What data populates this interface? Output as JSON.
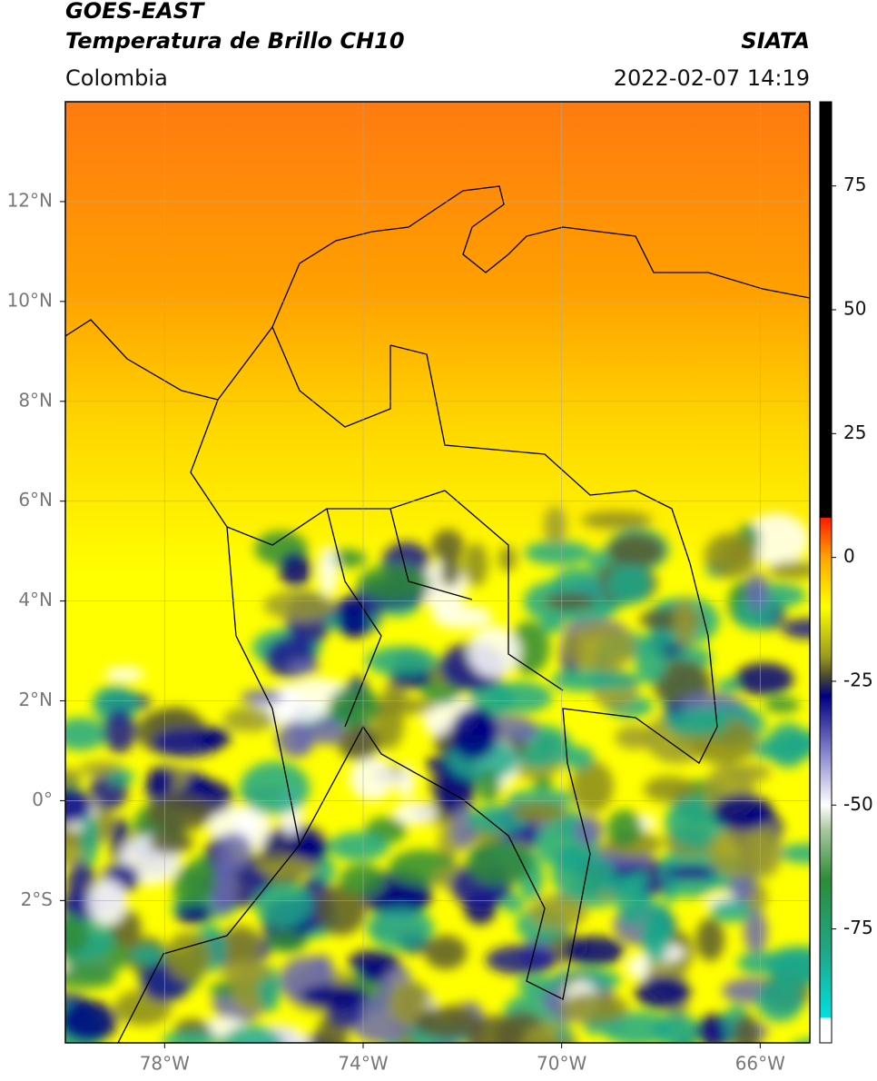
{
  "header": {
    "title": "GOES-EAST",
    "subtitle": "Temperatura de Brillo CH10",
    "source": "SIATA",
    "region": "Colombia",
    "datetime": "2022-02-07 14:19"
  },
  "map": {
    "lonlim": [
      -80,
      -65
    ],
    "latlim": [
      -4.85,
      14
    ],
    "lonticks": [
      {
        "value": -78,
        "label": "78°W"
      },
      {
        "value": -74,
        "label": "74°W"
      },
      {
        "value": -70,
        "label": "70°W"
      },
      {
        "value": -66,
        "label": "66°W"
      }
    ],
    "latticks": [
      {
        "value": 12,
        "label": "12°N"
      },
      {
        "value": 10,
        "label": "10°N"
      },
      {
        "value": 8,
        "label": "8°N"
      },
      {
        "value": 6,
        "label": "6°N"
      },
      {
        "value": 4,
        "label": "4°N"
      },
      {
        "value": 2,
        "label": "2°N"
      },
      {
        "value": 0,
        "label": "0°"
      },
      {
        "value": -2,
        "label": "2°S"
      }
    ],
    "grid": true
  },
  "colorbar": {
    "clim": [
      -98,
      92
    ],
    "ticks": [
      75,
      50,
      25,
      0,
      -25,
      -50,
      -75
    ],
    "colormap": [
      {
        "value": -98,
        "color": "#ffffff"
      },
      {
        "value": -93,
        "color": "#ffffff"
      },
      {
        "value": -93,
        "color": "#00e0e0"
      },
      {
        "value": -80,
        "color": "#1fa88a"
      },
      {
        "value": -65,
        "color": "#2e8b3a"
      },
      {
        "value": -55,
        "color": "#a8c8a0"
      },
      {
        "value": -50,
        "color": "#ffffff"
      },
      {
        "value": -40,
        "color": "#8c8cd0"
      },
      {
        "value": -28,
        "color": "#000080"
      },
      {
        "value": -24,
        "color": "#4a4a30"
      },
      {
        "value": -20,
        "color": "#9a9a20"
      },
      {
        "value": -10,
        "color": "#ffff00"
      },
      {
        "value": 0,
        "color": "#ffa500"
      },
      {
        "value": 8,
        "color": "#ff1a00"
      },
      {
        "value": 8,
        "color": "#000000"
      },
      {
        "value": 92,
        "color": "#000000"
      }
    ]
  }
}
